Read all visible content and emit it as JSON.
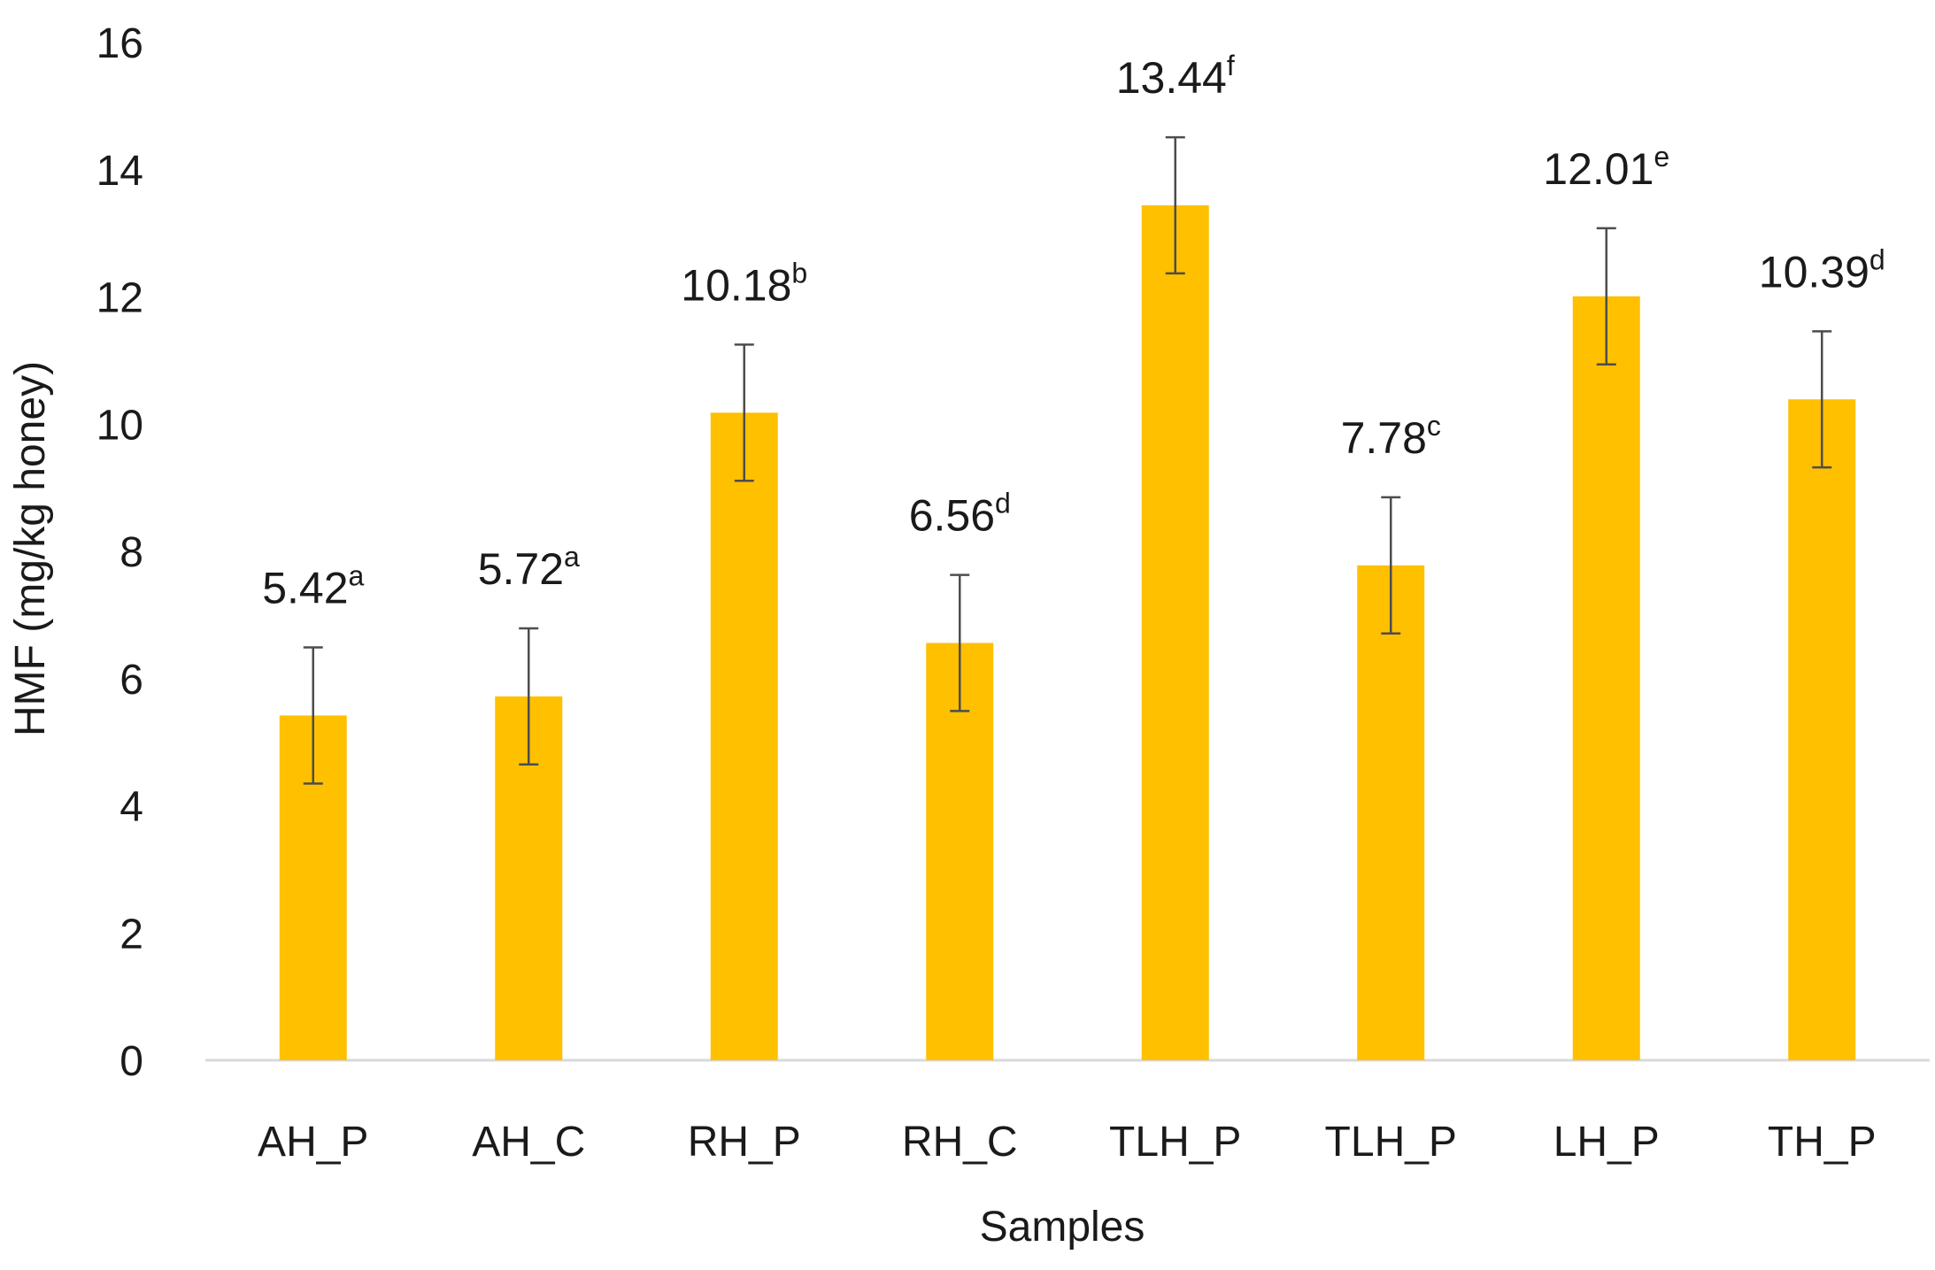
{
  "chart_data": {
    "type": "bar",
    "title": "",
    "xlabel": "Samples",
    "ylabel": "HMF (mg/kg honey)",
    "categories": [
      "AH_P",
      "AH_C",
      "RH_P",
      "RH_C",
      "TLH_P",
      "TLH_P",
      "LH_P",
      "TH_P"
    ],
    "values": [
      5.42,
      5.72,
      10.18,
      6.56,
      13.44,
      7.78,
      12.01,
      10.39
    ],
    "error": [
      1.07,
      1.07,
      1.07,
      1.07,
      1.07,
      1.07,
      1.07,
      1.07
    ],
    "value_labels": [
      "5.42",
      "5.72",
      "10.18",
      "6.56",
      "13.44",
      "7.78",
      "12.01",
      "10.39"
    ],
    "significance_letters": [
      "a",
      "a",
      "b",
      "d",
      "f",
      "c",
      "e",
      "d"
    ],
    "ylim": [
      0,
      16
    ],
    "yticks": [
      0,
      2,
      4,
      6,
      8,
      10,
      12,
      14,
      16
    ],
    "grid": false,
    "legend": "none",
    "bar_color": "#FFC000",
    "error_bar_color": "#4d4d4d",
    "axis_color": "#d9d9d9"
  }
}
